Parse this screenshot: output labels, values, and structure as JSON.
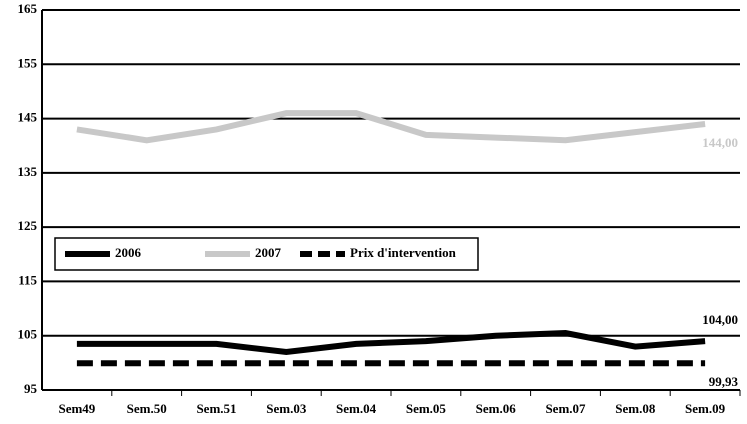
{
  "chart_data": {
    "type": "line",
    "categories": [
      "Sem49",
      "Sem.50",
      "Sem.51",
      "Sem.03",
      "Sem.04",
      "Sem.05",
      "Sem.06",
      "Sem.07",
      "Sem.08",
      "Sem.09"
    ],
    "series": [
      {
        "name": "2006",
        "color": "#000000",
        "style": "solid",
        "values": [
          103.5,
          103.5,
          103.5,
          102,
          103.5,
          104,
          105,
          105.5,
          103,
          104
        ],
        "value_labels": [
          null,
          null,
          null,
          null,
          null,
          null,
          null,
          null,
          null,
          "104,00"
        ]
      },
      {
        "name": "2007",
        "color": "#c8c8c8",
        "style": "solid",
        "values": [
          143,
          141,
          143,
          146,
          146,
          142,
          141.5,
          141,
          142.5,
          144
        ],
        "value_labels": [
          null,
          null,
          null,
          null,
          null,
          null,
          null,
          null,
          null,
          "144,00"
        ]
      },
      {
        "name": "Prix d'intervention",
        "color": "#000000",
        "style": "dashed",
        "values": [
          99.93,
          99.93,
          99.93,
          99.93,
          99.93,
          99.93,
          99.93,
          99.93,
          99.93,
          99.93
        ],
        "value_labels": [
          null,
          null,
          null,
          null,
          null,
          null,
          null,
          null,
          null,
          "99,93"
        ]
      }
    ],
    "ylim": [
      95,
      165
    ],
    "yticks": [
      95,
      105,
      115,
      125,
      135,
      145,
      155,
      165
    ],
    "grid": true
  }
}
